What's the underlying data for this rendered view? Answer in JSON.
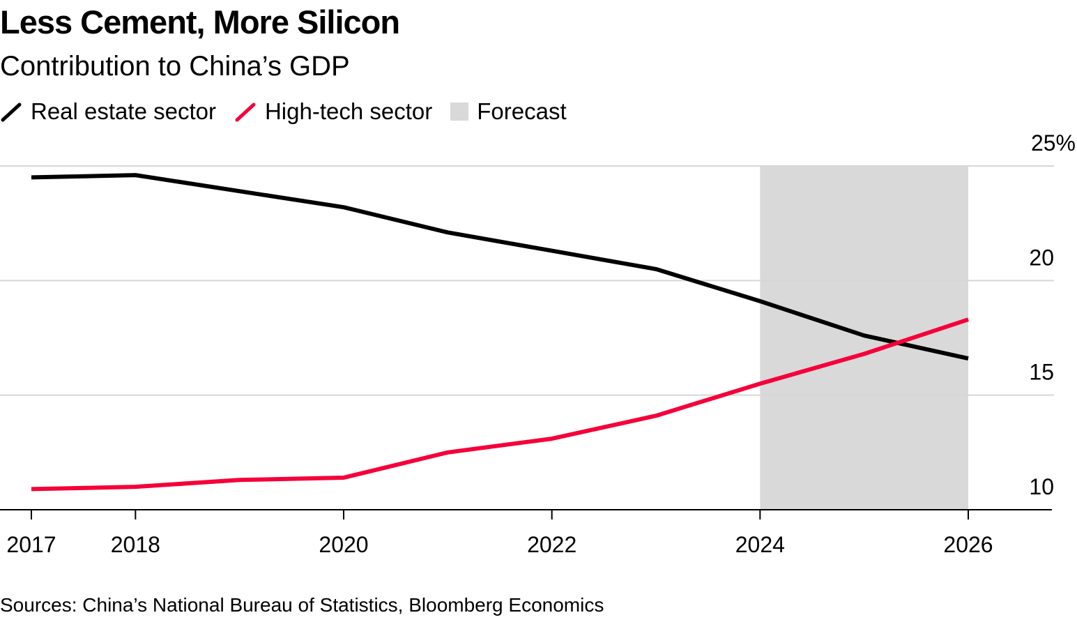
{
  "header": {
    "title": "Less Cement, More Silicon",
    "subtitle": "Contribution to China’s GDP"
  },
  "legend": [
    {
      "label": "Real estate sector",
      "color": "#000000",
      "icon": "line-swatch-icon"
    },
    {
      "label": "High-tech sector",
      "color": "#f5003a",
      "icon": "line-swatch-icon"
    },
    {
      "label": "Forecast",
      "color": "#d9d9d9",
      "icon": "square-swatch-icon"
    }
  ],
  "source": "Sources: China’s National Bureau of Statistics, Bloomberg Economics",
  "chart_data": {
    "type": "line",
    "title": "Less Cement, More Silicon",
    "subtitle": "Contribution to China’s GDP",
    "x": [
      2017,
      2018,
      2019,
      2020,
      2021,
      2022,
      2023,
      2024,
      2025,
      2026
    ],
    "x_ticks": [
      {
        "value": 2017,
        "label": "2017"
      },
      {
        "value": 2018,
        "label": "2018"
      },
      {
        "value": 2020,
        "label": "2020"
      },
      {
        "value": 2022,
        "label": "2022"
      },
      {
        "value": 2024,
        "label": "2024"
      },
      {
        "value": 2026,
        "label": "2026"
      }
    ],
    "y_ticks": [
      {
        "value": 25,
        "label": "25%"
      },
      {
        "value": 20,
        "label": "20"
      },
      {
        "value": 15,
        "label": "15"
      },
      {
        "value": 10,
        "label": "10"
      }
    ],
    "xlim": [
      2016.75,
      2026.8
    ],
    "ylim": [
      10,
      25
    ],
    "y_axis_side": "right",
    "grid": true,
    "legend_position": "top-left",
    "forecast_range": [
      2024,
      2026
    ],
    "forecast_color": "#d9d9d9",
    "series": [
      {
        "name": "Real estate sector",
        "color": "#000000",
        "values": [
          24.5,
          24.6,
          23.9,
          23.2,
          22.1,
          21.3,
          20.5,
          19.1,
          17.6,
          16.6
        ]
      },
      {
        "name": "High-tech sector",
        "color": "#f5003a",
        "values": [
          10.9,
          11.0,
          11.3,
          11.4,
          12.5,
          13.1,
          14.1,
          15.5,
          16.8,
          18.3
        ]
      }
    ]
  }
}
